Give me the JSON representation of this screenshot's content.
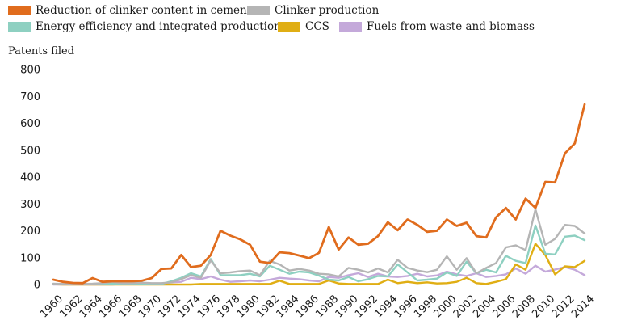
{
  "chart_data": {
    "type": "line",
    "title": "",
    "xlabel": "",
    "ylabel": "Patents filed",
    "ylim": [
      0,
      800
    ],
    "yticks": [
      0,
      100,
      200,
      300,
      400,
      500,
      600,
      700,
      800
    ],
    "x": [
      1960,
      1961,
      1962,
      1963,
      1964,
      1965,
      1966,
      1967,
      1968,
      1969,
      1970,
      1971,
      1972,
      1973,
      1974,
      1975,
      1976,
      1977,
      1978,
      1979,
      1980,
      1981,
      1982,
      1983,
      1984,
      1985,
      1986,
      1987,
      1988,
      1989,
      1990,
      1991,
      1992,
      1993,
      1994,
      1995,
      1996,
      1997,
      1998,
      1999,
      2000,
      2001,
      2002,
      2003,
      2004,
      2005,
      2006,
      2007,
      2008,
      2009,
      2010,
      2011,
      2012,
      2013,
      2014
    ],
    "xtick_labels": [
      "1960",
      "1962",
      "1964",
      "1966",
      "1968",
      "1970",
      "1972",
      "1974",
      "1976",
      "1978",
      "1980",
      "1982",
      "1984",
      "1986",
      "1988",
      "1990",
      "1992",
      "1994",
      "1996",
      "1998",
      "2000",
      "2002",
      "2004",
      "2006",
      "2008",
      "2010",
      "2012",
      "2014"
    ],
    "grid": false,
    "legend_position": "top",
    "series": [
      {
        "name": "Reduction of clinker content in cement",
        "color": "#e06c1d",
        "values": [
          18,
          10,
          6,
          5,
          24,
          10,
          12,
          12,
          12,
          14,
          24,
          58,
          60,
          110,
          65,
          70,
          110,
          200,
          182,
          168,
          148,
          85,
          80,
          120,
          117,
          108,
          98,
          118,
          214,
          130,
          175,
          148,
          152,
          180,
          232,
          202,
          242,
          222,
          196,
          200,
          242,
          218,
          230,
          180,
          175,
          250,
          285,
          242,
          320,
          285,
          382,
          380,
          488,
          525,
          670
        ]
      },
      {
        "name": "Clinker production",
        "color": "#b5b5b5",
        "values": [
          3,
          2,
          2,
          2,
          3,
          5,
          10,
          5,
          5,
          7,
          5,
          5,
          8,
          20,
          35,
          25,
          90,
          42,
          45,
          50,
          52,
          35,
          88,
          75,
          52,
          58,
          52,
          40,
          38,
          30,
          62,
          55,
          45,
          60,
          45,
          92,
          62,
          52,
          46,
          55,
          105,
          55,
          98,
          42,
          62,
          80,
          138,
          146,
          128,
          280,
          148,
          170,
          222,
          218,
          190
        ]
      },
      {
        "name": "Energy efficiency and integrated production",
        "color": "#8ed0c1",
        "values": [
          2,
          1,
          1,
          1,
          2,
          2,
          3,
          2,
          2,
          3,
          2,
          2,
          12,
          25,
          42,
          30,
          95,
          35,
          35,
          35,
          40,
          30,
          70,
          55,
          40,
          48,
          45,
          33,
          18,
          15,
          28,
          12,
          20,
          32,
          30,
          75,
          45,
          15,
          18,
          22,
          45,
          32,
          85,
          42,
          55,
          45,
          107,
          88,
          80,
          220,
          115,
          112,
          178,
          182,
          165
        ]
      },
      {
        "name": "CCS",
        "color": "#e0ae14",
        "values": [
          1,
          0,
          0,
          0,
          0,
          0,
          0,
          0,
          0,
          0,
          0,
          0,
          0,
          0,
          0,
          2,
          2,
          2,
          2,
          2,
          2,
          2,
          2,
          14,
          2,
          2,
          2,
          2,
          15,
          4,
          2,
          2,
          2,
          2,
          18,
          5,
          10,
          5,
          8,
          4,
          5,
          10,
          25,
          5,
          2,
          10,
          20,
          75,
          55,
          152,
          110,
          38,
          68,
          65,
          88
        ]
      },
      {
        "name": "Fuels from waste and biomass",
        "color": "#c4a9da",
        "values": [
          0,
          0,
          0,
          0,
          0,
          0,
          0,
          2,
          4,
          2,
          2,
          4,
          8,
          10,
          25,
          20,
          30,
          18,
          10,
          12,
          15,
          12,
          18,
          25,
          22,
          20,
          15,
          12,
          28,
          25,
          35,
          42,
          28,
          40,
          30,
          28,
          32,
          40,
          30,
          34,
          48,
          38,
          32,
          42,
          28,
          32,
          38,
          60,
          40,
          70,
          48,
          56,
          65,
          55,
          35
        ]
      }
    ]
  }
}
